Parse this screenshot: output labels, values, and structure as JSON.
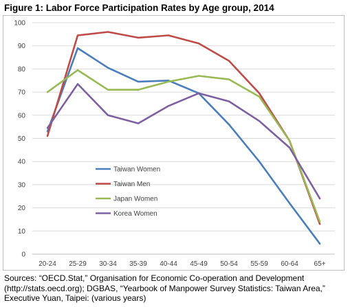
{
  "figure_title": "Figure 1: Labor Force Participation Rates by Age group, 2014",
  "sources": [
    "Sources: “OECD.Stat,” Organisation for Economic Co-operation and Development",
    "(http://stats.oecd.org); DGBAS, “Yearbook of Manpower Survey Statistics: Taiwan Area,”",
    "Executive Yuan, Taipei: (various years)"
  ],
  "chart_data": {
    "type": "line",
    "title": "Figure 1: Labor Force Participation Rates by Age group, 2014",
    "xlabel": "",
    "ylabel": "",
    "categories": [
      "20-24",
      "25-29",
      "30-34",
      "35-39",
      "40-44",
      "45-49",
      "50-54",
      "55-59",
      "60-64",
      "65+"
    ],
    "ylim": [
      0,
      100
    ],
    "yticks": [
      0,
      10,
      20,
      30,
      40,
      50,
      60,
      70,
      80,
      90,
      100
    ],
    "grid": true,
    "legend_position": "center-left",
    "series": [
      {
        "name": "Taiwan Women",
        "color": "#4a7ebb",
        "values": [
          53,
          89,
          80.5,
          74.5,
          75,
          69.5,
          56,
          40,
          22,
          4.5
        ]
      },
      {
        "name": "Taiwan Men",
        "color": "#be4b48",
        "values": [
          51,
          94.5,
          96,
          93.5,
          94.5,
          91,
          83.5,
          69.5,
          49,
          13
        ]
      },
      {
        "name": "Japan Women",
        "color": "#98b954",
        "values": [
          70,
          79.5,
          71,
          71,
          74.5,
          77,
          75.5,
          68,
          49,
          14
        ]
      },
      {
        "name": "Korea Women",
        "color": "#7d60a0",
        "values": [
          54.5,
          73.5,
          60,
          56.5,
          64,
          69.5,
          66,
          57.5,
          46,
          24
        ]
      }
    ]
  }
}
